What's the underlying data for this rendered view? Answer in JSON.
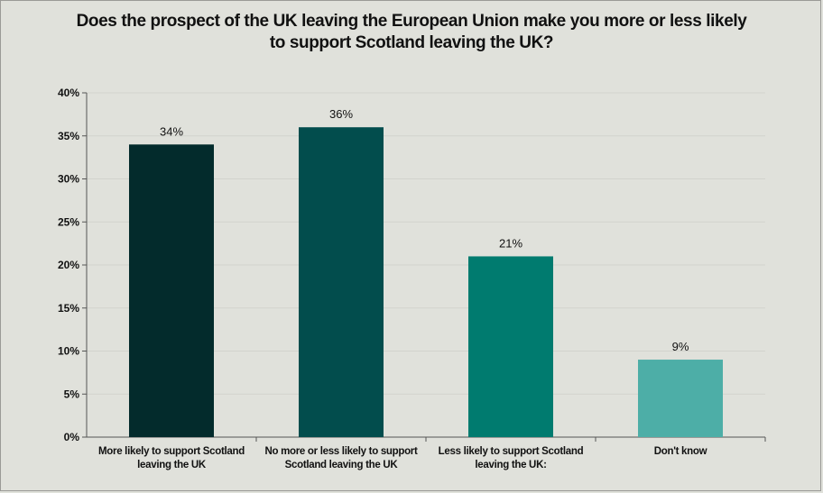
{
  "chart_data": {
    "type": "bar",
    "title_lines": [
      "Does the prospect of the UK leaving the European Union make you more or less likely",
      "to support Scotland leaving the UK?"
    ],
    "categories": [
      [
        "More likely to support Scotland",
        "leaving the UK"
      ],
      [
        "No more or less likely to support",
        "Scotland leaving the UK"
      ],
      [
        "Less likely to support Scotland",
        "leaving the UK:"
      ],
      [
        "Don't know"
      ]
    ],
    "values": [
      34,
      36,
      21,
      9
    ],
    "data_labels": [
      "34%",
      "36%",
      "21%",
      "9%"
    ],
    "colors": [
      "#032b2c",
      "#024d4d",
      "#007b6f",
      "#4daea7"
    ],
    "ylim": [
      0,
      40
    ],
    "yticks": [
      0,
      5,
      10,
      15,
      20,
      25,
      30,
      35,
      40
    ],
    "ytick_labels": [
      "0%",
      "5%",
      "10%",
      "15%",
      "20%",
      "25%",
      "30%",
      "35%",
      "40%"
    ],
    "grid": true,
    "xlabel": "",
    "ylabel": ""
  }
}
